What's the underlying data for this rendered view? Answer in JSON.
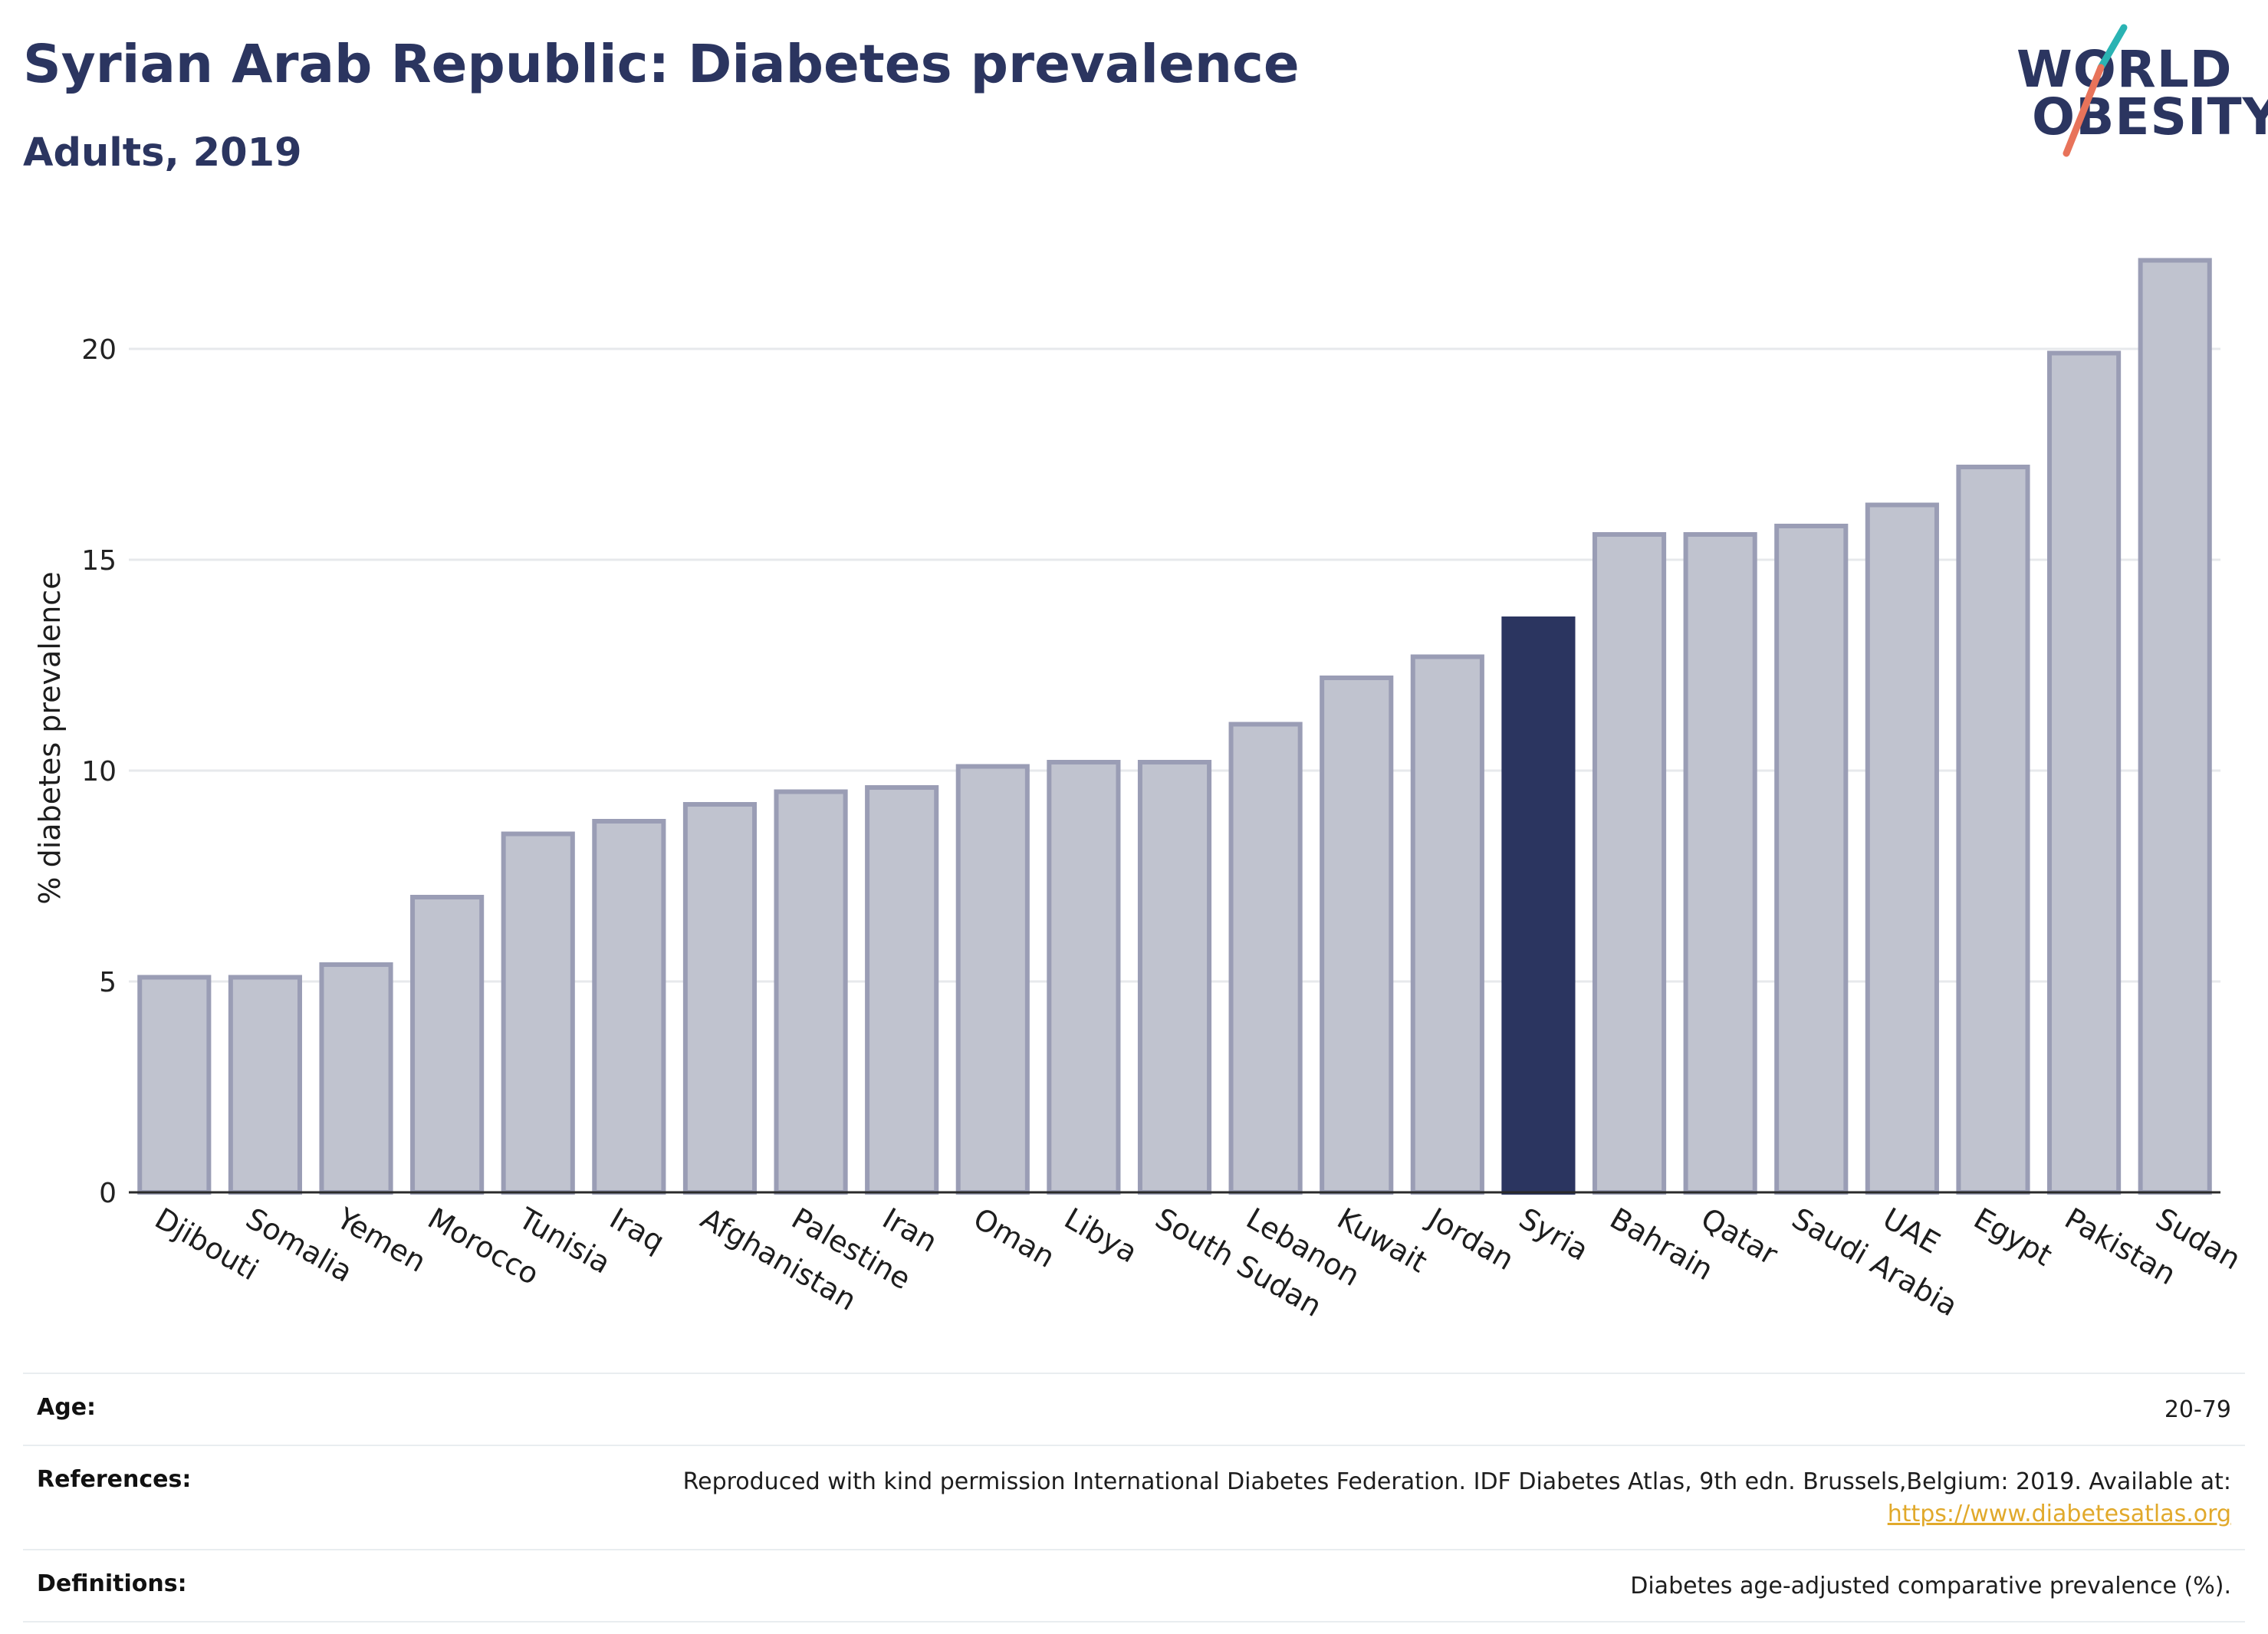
{
  "header": {
    "title": "Syrian Arab Republic: Diabetes prevalence",
    "subtitle": "Adults, 2019"
  },
  "logo": {
    "line1": "WORLD",
    "line2": "OBESITY",
    "colors": {
      "text": "#2b3560",
      "slash_top": "#2ab3b3",
      "slash_bottom": "#e8735a"
    }
  },
  "colors": {
    "bar": "#c0c3cf",
    "bar_edge": "#9a9db5",
    "highlight": "#2b3560",
    "grid": "#e7e9ec"
  },
  "chart_data": {
    "type": "bar",
    "title": "",
    "xlabel": "",
    "ylabel": "% diabetes prevalence",
    "ylim": [
      0,
      23
    ],
    "yticks": [
      0,
      5,
      10,
      15,
      20
    ],
    "grid": true,
    "highlight": "Syria",
    "categories": [
      "Djibouti",
      "Somalia",
      "Yemen",
      "Morocco",
      "Tunisia",
      "Iraq",
      "Afghanistan",
      "Palestine",
      "Iran",
      "Oman",
      "Libya",
      "South Sudan",
      "Lebanon",
      "Kuwait",
      "Jordan",
      "Syria",
      "Bahrain",
      "Qatar",
      "Saudi Arabia",
      "UAE",
      "Egypt",
      "Pakistan",
      "Sudan"
    ],
    "values": [
      5.1,
      5.1,
      5.4,
      7.0,
      8.5,
      8.8,
      9.2,
      9.5,
      9.6,
      10.1,
      10.2,
      10.2,
      11.1,
      12.2,
      12.7,
      13.6,
      15.6,
      15.6,
      15.8,
      16.3,
      17.2,
      19.9,
      22.1
    ]
  },
  "info_table": {
    "rows": [
      {
        "key": "Age:",
        "value": "20-79"
      },
      {
        "key": "References:",
        "value": "Reproduced with kind permission International Diabetes Federation. IDF Diabetes Atlas, 9th edn. Brussels,Belgium: 2019. Available at:",
        "link": "https://www.diabetesatlas.org"
      },
      {
        "key": "Definitions:",
        "value": "Diabetes age-adjusted comparative prevalence (%)."
      }
    ]
  }
}
